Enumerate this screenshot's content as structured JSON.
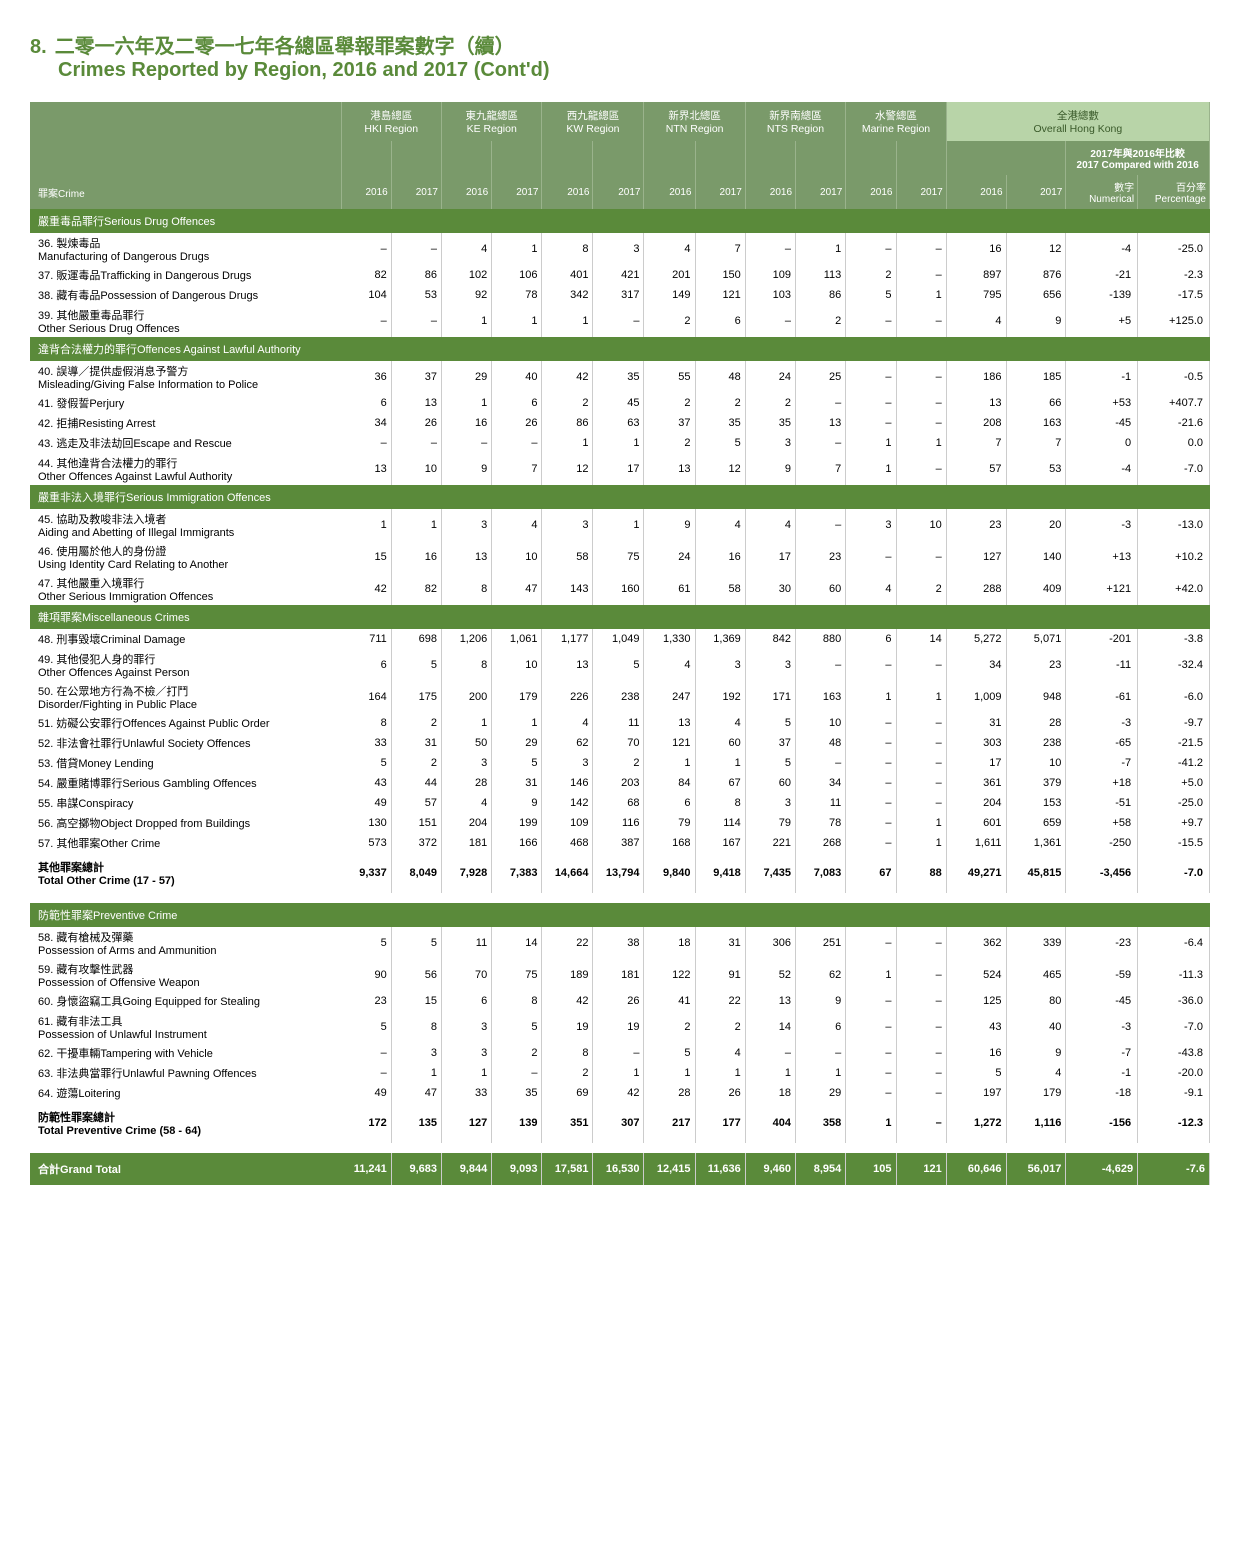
{
  "title": {
    "num": "8.",
    "zh": "二零一六年及二零一七年各總區舉報罪案數字（續）",
    "en": "Crimes Reported by Region, 2016 and 2017 (Cont'd)"
  },
  "regions": [
    {
      "zh": "港島總區",
      "en": "HKI Region"
    },
    {
      "zh": "東九龍總區",
      "en": "KE Region"
    },
    {
      "zh": "西九龍總區",
      "en": "KW Region"
    },
    {
      "zh": "新界北總區",
      "en": "NTN Region"
    },
    {
      "zh": "新界南總區",
      "en": "NTS Region"
    },
    {
      "zh": "水警總區",
      "en": "Marine Region"
    }
  ],
  "overall": {
    "zh": "全港總數",
    "en": "Overall Hong Kong"
  },
  "compare": {
    "zh": "2017年與2016年比較",
    "en": "2017 Compared with 2016"
  },
  "sub": {
    "num_zh": "數字",
    "num_en": "Numerical",
    "pct_zh": "百分率",
    "pct_en": "Percentage"
  },
  "crime_label": "罪案Crime",
  "years": [
    "2016",
    "2017"
  ],
  "sections": [
    {
      "header": "嚴重毒品罪行Serious Drug Offences",
      "rows": [
        {
          "n": "36.",
          "zh": "製煉毒品",
          "en": "Manufacturing of Dangerous Drugs",
          "v": [
            "–",
            "–",
            "4",
            "1",
            "8",
            "3",
            "4",
            "7",
            "–",
            "1",
            "–",
            "–",
            "16",
            "12",
            "-4",
            "-25.0"
          ]
        },
        {
          "n": "37.",
          "zh": "販運毒品Trafficking in Dangerous Drugs",
          "en": "",
          "v": [
            "82",
            "86",
            "102",
            "106",
            "401",
            "421",
            "201",
            "150",
            "109",
            "113",
            "2",
            "–",
            "897",
            "876",
            "-21",
            "-2.3"
          ]
        },
        {
          "n": "38.",
          "zh": "藏有毒品Possession of Dangerous Drugs",
          "en": "",
          "v": [
            "104",
            "53",
            "92",
            "78",
            "342",
            "317",
            "149",
            "121",
            "103",
            "86",
            "5",
            "1",
            "795",
            "656",
            "-139",
            "-17.5"
          ]
        },
        {
          "n": "39.",
          "zh": "其他嚴重毒品罪行",
          "en": "Other Serious Drug Offences",
          "v": [
            "–",
            "–",
            "1",
            "1",
            "1",
            "–",
            "2",
            "6",
            "–",
            "2",
            "–",
            "–",
            "4",
            "9",
            "+5",
            "+125.0"
          ]
        }
      ]
    },
    {
      "header": "違背合法權力的罪行Offences Against Lawful Authority",
      "rows": [
        {
          "n": "40.",
          "zh": "誤導／提供虛假消息予警方",
          "en": "Misleading/Giving False Information to Police",
          "v": [
            "36",
            "37",
            "29",
            "40",
            "42",
            "35",
            "55",
            "48",
            "24",
            "25",
            "–",
            "–",
            "186",
            "185",
            "-1",
            "-0.5"
          ]
        },
        {
          "n": "41.",
          "zh": "發假誓Perjury",
          "en": "",
          "v": [
            "6",
            "13",
            "1",
            "6",
            "2",
            "45",
            "2",
            "2",
            "2",
            "–",
            "–",
            "–",
            "13",
            "66",
            "+53",
            "+407.7"
          ]
        },
        {
          "n": "42.",
          "zh": "拒捕Resisting Arrest",
          "en": "",
          "v": [
            "34",
            "26",
            "16",
            "26",
            "86",
            "63",
            "37",
            "35",
            "35",
            "13",
            "–",
            "–",
            "208",
            "163",
            "-45",
            "-21.6"
          ]
        },
        {
          "n": "43.",
          "zh": "逃走及非法劫回Escape and Rescue",
          "en": "",
          "v": [
            "–",
            "–",
            "–",
            "–",
            "1",
            "1",
            "2",
            "5",
            "3",
            "–",
            "1",
            "1",
            "7",
            "7",
            "0",
            "0.0"
          ]
        },
        {
          "n": "44.",
          "zh": "其他違背合法權力的罪行",
          "en": "Other Offences Against Lawful Authority",
          "v": [
            "13",
            "10",
            "9",
            "7",
            "12",
            "17",
            "13",
            "12",
            "9",
            "7",
            "1",
            "–",
            "57",
            "53",
            "-4",
            "-7.0"
          ]
        }
      ]
    },
    {
      "header": "嚴重非法入境罪行Serious Immigration Offences",
      "rows": [
        {
          "n": "45.",
          "zh": "協助及教唆非法入境者",
          "en": "Aiding and Abetting of Illegal Immigrants",
          "v": [
            "1",
            "1",
            "3",
            "4",
            "3",
            "1",
            "9",
            "4",
            "4",
            "–",
            "3",
            "10",
            "23",
            "20",
            "-3",
            "-13.0"
          ]
        },
        {
          "n": "46.",
          "zh": "使用屬於他人的身份證",
          "en": "Using Identity Card Relating to Another",
          "v": [
            "15",
            "16",
            "13",
            "10",
            "58",
            "75",
            "24",
            "16",
            "17",
            "23",
            "–",
            "–",
            "127",
            "140",
            "+13",
            "+10.2"
          ]
        },
        {
          "n": "47.",
          "zh": "其他嚴重入境罪行",
          "en": "Other Serious Immigration Offences",
          "v": [
            "42",
            "82",
            "8",
            "47",
            "143",
            "160",
            "61",
            "58",
            "30",
            "60",
            "4",
            "2",
            "288",
            "409",
            "+121",
            "+42.0"
          ]
        }
      ]
    },
    {
      "header": "雜項罪案Miscellaneous Crimes",
      "rows": [
        {
          "n": "48.",
          "zh": "刑事毀壞Criminal Damage",
          "en": "",
          "v": [
            "711",
            "698",
            "1,206",
            "1,061",
            "1,177",
            "1,049",
            "1,330",
            "1,369",
            "842",
            "880",
            "6",
            "14",
            "5,272",
            "5,071",
            "-201",
            "-3.8"
          ]
        },
        {
          "n": "49.",
          "zh": "其他侵犯人身的罪行",
          "en": "Other Offences Against Person",
          "v": [
            "6",
            "5",
            "8",
            "10",
            "13",
            "5",
            "4",
            "3",
            "3",
            "–",
            "–",
            "–",
            "34",
            "23",
            "-11",
            "-32.4"
          ]
        },
        {
          "n": "50.",
          "zh": "在公眾地方行為不檢／打鬥",
          "en": "Disorder/Fighting in Public Place",
          "v": [
            "164",
            "175",
            "200",
            "179",
            "226",
            "238",
            "247",
            "192",
            "171",
            "163",
            "1",
            "1",
            "1,009",
            "948",
            "-61",
            "-6.0"
          ]
        },
        {
          "n": "51.",
          "zh": "妨礙公安罪行Offences Against Public Order",
          "en": "",
          "v": [
            "8",
            "2",
            "1",
            "1",
            "4",
            "11",
            "13",
            "4",
            "5",
            "10",
            "–",
            "–",
            "31",
            "28",
            "-3",
            "-9.7"
          ]
        },
        {
          "n": "52.",
          "zh": "非法會社罪行Unlawful Society Offences",
          "en": "",
          "v": [
            "33",
            "31",
            "50",
            "29",
            "62",
            "70",
            "121",
            "60",
            "37",
            "48",
            "–",
            "–",
            "303",
            "238",
            "-65",
            "-21.5"
          ]
        },
        {
          "n": "53.",
          "zh": "借貸Money Lending",
          "en": "",
          "v": [
            "5",
            "2",
            "3",
            "5",
            "3",
            "2",
            "1",
            "1",
            "5",
            "–",
            "–",
            "–",
            "17",
            "10",
            "-7",
            "-41.2"
          ]
        },
        {
          "n": "54.",
          "zh": "嚴重賭博罪行Serious Gambling Offences",
          "en": "",
          "v": [
            "43",
            "44",
            "28",
            "31",
            "146",
            "203",
            "84",
            "67",
            "60",
            "34",
            "–",
            "–",
            "361",
            "379",
            "+18",
            "+5.0"
          ]
        },
        {
          "n": "55.",
          "zh": "串謀Conspiracy",
          "en": "",
          "v": [
            "49",
            "57",
            "4",
            "9",
            "142",
            "68",
            "6",
            "8",
            "3",
            "11",
            "–",
            "–",
            "204",
            "153",
            "-51",
            "-25.0"
          ]
        },
        {
          "n": "56.",
          "zh": "高空擲物Object Dropped from Buildings",
          "en": "",
          "v": [
            "130",
            "151",
            "204",
            "199",
            "109",
            "116",
            "79",
            "114",
            "79",
            "78",
            "–",
            "1",
            "601",
            "659",
            "+58",
            "+9.7"
          ]
        },
        {
          "n": "57.",
          "zh": "其他罪案Other Crime",
          "en": "",
          "v": [
            "573",
            "372",
            "181",
            "166",
            "468",
            "387",
            "168",
            "167",
            "221",
            "268",
            "–",
            "1",
            "1,611",
            "1,361",
            "-250",
            "-15.5"
          ]
        }
      ],
      "subtotal": {
        "zh": "其他罪案總計",
        "en": "Total Other Crime (17 - 57)",
        "v": [
          "9,337",
          "8,049",
          "7,928",
          "7,383",
          "14,664",
          "13,794",
          "9,840",
          "9,418",
          "7,435",
          "7,083",
          "67",
          "88",
          "49,271",
          "45,815",
          "-3,456",
          "-7.0"
        ]
      }
    },
    {
      "header": "防範性罪案Preventive Crime",
      "rows": [
        {
          "n": "58.",
          "zh": "藏有槍械及彈藥",
          "en": "Possession of Arms and Ammunition",
          "v": [
            "5",
            "5",
            "11",
            "14",
            "22",
            "38",
            "18",
            "31",
            "306",
            "251",
            "–",
            "–",
            "362",
            "339",
            "-23",
            "-6.4"
          ]
        },
        {
          "n": "59.",
          "zh": "藏有攻擊性武器",
          "en": "Possession of Offensive Weapon",
          "v": [
            "90",
            "56",
            "70",
            "75",
            "189",
            "181",
            "122",
            "91",
            "52",
            "62",
            "1",
            "–",
            "524",
            "465",
            "-59",
            "-11.3"
          ]
        },
        {
          "n": "60.",
          "zh": "身懷盜竊工具Going Equipped for Stealing",
          "en": "",
          "v": [
            "23",
            "15",
            "6",
            "8",
            "42",
            "26",
            "41",
            "22",
            "13",
            "9",
            "–",
            "–",
            "125",
            "80",
            "-45",
            "-36.0"
          ]
        },
        {
          "n": "61.",
          "zh": "藏有非法工具",
          "en": "Possession of Unlawful Instrument",
          "v": [
            "5",
            "8",
            "3",
            "5",
            "19",
            "19",
            "2",
            "2",
            "14",
            "6",
            "–",
            "–",
            "43",
            "40",
            "-3",
            "-7.0"
          ]
        },
        {
          "n": "62.",
          "zh": "干擾車輛Tampering with Vehicle",
          "en": "",
          "v": [
            "–",
            "3",
            "3",
            "2",
            "8",
            "–",
            "5",
            "4",
            "–",
            "–",
            "–",
            "–",
            "16",
            "9",
            "-7",
            "-43.8"
          ]
        },
        {
          "n": "63.",
          "zh": "非法典當罪行Unlawful Pawning Offences",
          "en": "",
          "v": [
            "–",
            "1",
            "1",
            "–",
            "2",
            "1",
            "1",
            "1",
            "1",
            "1",
            "–",
            "–",
            "5",
            "4",
            "-1",
            "-20.0"
          ]
        },
        {
          "n": "64.",
          "zh": "遊蕩Loitering",
          "en": "",
          "v": [
            "49",
            "47",
            "33",
            "35",
            "69",
            "42",
            "28",
            "26",
            "18",
            "29",
            "–",
            "–",
            "197",
            "179",
            "-18",
            "-9.1"
          ]
        }
      ],
      "subtotal": {
        "zh": "防範性罪案總計",
        "en": "Total Preventive Crime (58 - 64)",
        "v": [
          "172",
          "135",
          "127",
          "139",
          "351",
          "307",
          "217",
          "177",
          "404",
          "358",
          "1",
          "–",
          "1,272",
          "1,116",
          "-156",
          "-12.3"
        ]
      }
    }
  ],
  "grand": {
    "label": "合計Grand Total",
    "v": [
      "11,241",
      "9,683",
      "9,844",
      "9,093",
      "17,581",
      "16,530",
      "12,415",
      "11,636",
      "9,460",
      "8,954",
      "105",
      "121",
      "60,646",
      "56,017",
      "-4,629",
      "-7.6"
    ]
  }
}
